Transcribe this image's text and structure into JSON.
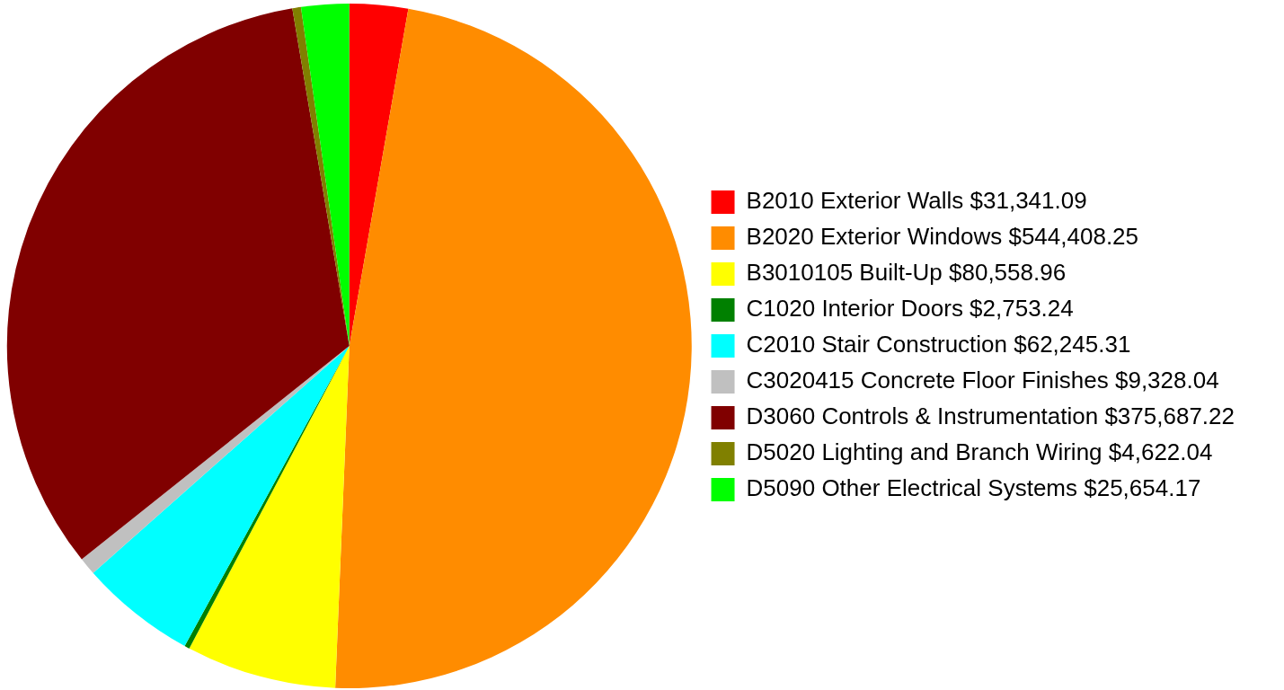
{
  "chart_data": {
    "type": "pie",
    "categories": [
      "B2010 Exterior Walls $31,341.09",
      "B2020 Exterior Windows $544,408.25",
      "B3010105 Built-Up $80,558.96",
      "C1020 Interior Doors $2,753.24",
      "C2010 Stair Construction $62,245.31",
      "C3020415 Concrete Floor Finishes $9,328.04",
      "D3060 Controls & Instrumentation $375,687.22",
      "D5020 Lighting and Branch Wiring $4,622.04",
      "D5090 Other Electrical Systems $25,654.17"
    ],
    "values": [
      31341.09,
      544408.25,
      80558.96,
      2753.24,
      62245.31,
      9328.04,
      375687.22,
      4622.04,
      25654.17
    ],
    "colors": [
      "#ff0000",
      "#ff8c00",
      "#ffff00",
      "#008000",
      "#00ffff",
      "#c0c0c0",
      "#800000",
      "#808000",
      "#00ff00"
    ],
    "legend": "right"
  }
}
